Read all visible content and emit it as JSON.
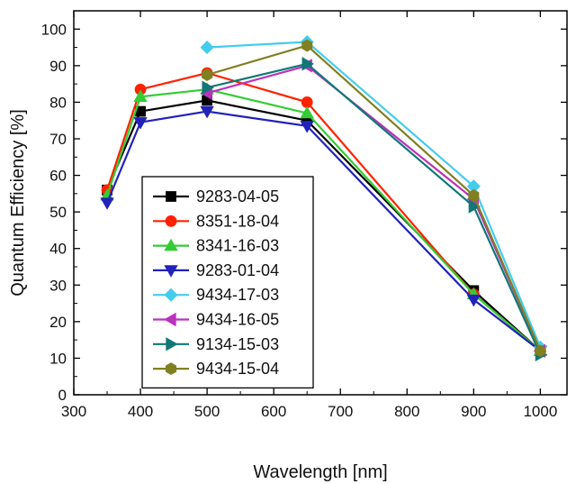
{
  "chart_data": {
    "type": "line",
    "title": "",
    "xlabel": "Wavelength [nm]",
    "ylabel": "Quantum Efficiency [%]",
    "xlim": [
      300,
      1040
    ],
    "ylim": [
      0,
      105
    ],
    "xticks": [
      300,
      400,
      500,
      600,
      700,
      800,
      900,
      1000
    ],
    "yticks": [
      0,
      10,
      20,
      30,
      40,
      50,
      60,
      70,
      80,
      90,
      100
    ],
    "grid": false,
    "legend_position": "lower-left",
    "series": [
      {
        "name": "9283-04-05",
        "color": "#000000",
        "marker": "square",
        "x": [
          350,
          400,
          500,
          650,
          900,
          1000
        ],
        "y": [
          56,
          77.5,
          80.5,
          75,
          28.5,
          12
        ]
      },
      {
        "name": "8351-18-04",
        "color": "#ff2200",
        "marker": "circle",
        "x": [
          350,
          400,
          500,
          650,
          900,
          1000
        ],
        "y": [
          56,
          83.5,
          88,
          80,
          27.5,
          12
        ]
      },
      {
        "name": "8341-16-03",
        "color": "#33cc33",
        "marker": "triangle-up",
        "x": [
          350,
          400,
          500,
          650,
          900,
          1000
        ],
        "y": [
          54.5,
          81.5,
          83.5,
          77,
          27.5,
          12
        ]
      },
      {
        "name": "9283-01-04",
        "color": "#2222bb",
        "marker": "triangle-down",
        "x": [
          350,
          400,
          500,
          650,
          900,
          1000
        ],
        "y": [
          52.5,
          74.5,
          77.5,
          73.5,
          26,
          12
        ]
      },
      {
        "name": "9434-17-03",
        "color": "#44ccee",
        "marker": "diamond",
        "x": [
          500,
          650,
          900,
          1000
        ],
        "y": [
          95,
          96.5,
          57,
          13
        ]
      },
      {
        "name": "9434-16-05",
        "color": "#bb33bb",
        "marker": "triangle-left",
        "x": [
          500,
          650,
          900,
          1000
        ],
        "y": [
          82.5,
          90,
          53.5,
          12
        ]
      },
      {
        "name": "9134-15-03",
        "color": "#117777",
        "marker": "triangle-right",
        "x": [
          500,
          650,
          900,
          1000
        ],
        "y": [
          84,
          90.5,
          51.5,
          11
        ]
      },
      {
        "name": "9434-15-04",
        "color": "#808022",
        "marker": "hexagon",
        "x": [
          500,
          650,
          900,
          1000
        ],
        "y": [
          87.5,
          95.5,
          54.5,
          12
        ]
      }
    ]
  }
}
